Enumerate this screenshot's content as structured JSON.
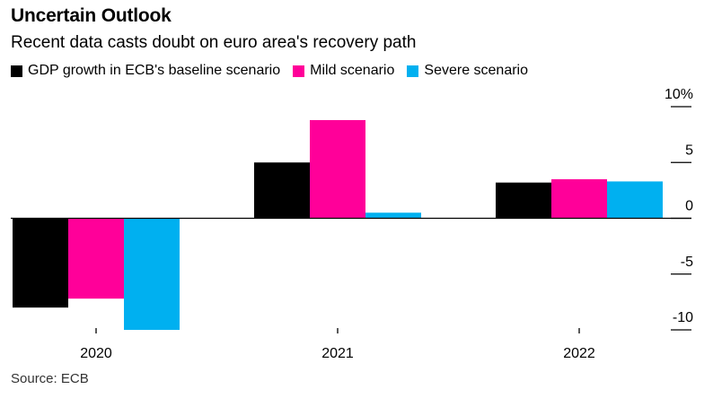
{
  "title": "Uncertain Outlook",
  "subtitle": "Recent data casts doubt on euro area's recovery path",
  "source": "Source: ECB",
  "chart_data": {
    "type": "bar",
    "categories": [
      "2020",
      "2021",
      "2022"
    ],
    "series": [
      {
        "name": "GDP growth in ECB's baseline scenario",
        "color": "#000000",
        "values": [
          -8.0,
          5.0,
          3.2
        ]
      },
      {
        "name": "Mild scenario",
        "color": "#ff0099",
        "values": [
          -7.2,
          8.8,
          3.5
        ]
      },
      {
        "name": "Severe scenario",
        "color": "#00b0f0",
        "values": [
          -10.0,
          0.5,
          3.3
        ]
      }
    ],
    "ylim": [
      -10,
      10
    ],
    "yticks": [
      10,
      5,
      0,
      -5,
      -10
    ],
    "ytick_labels": [
      "10%",
      "5",
      "0",
      "-5",
      "-10"
    ],
    "grid": false,
    "legend": "top-left"
  }
}
